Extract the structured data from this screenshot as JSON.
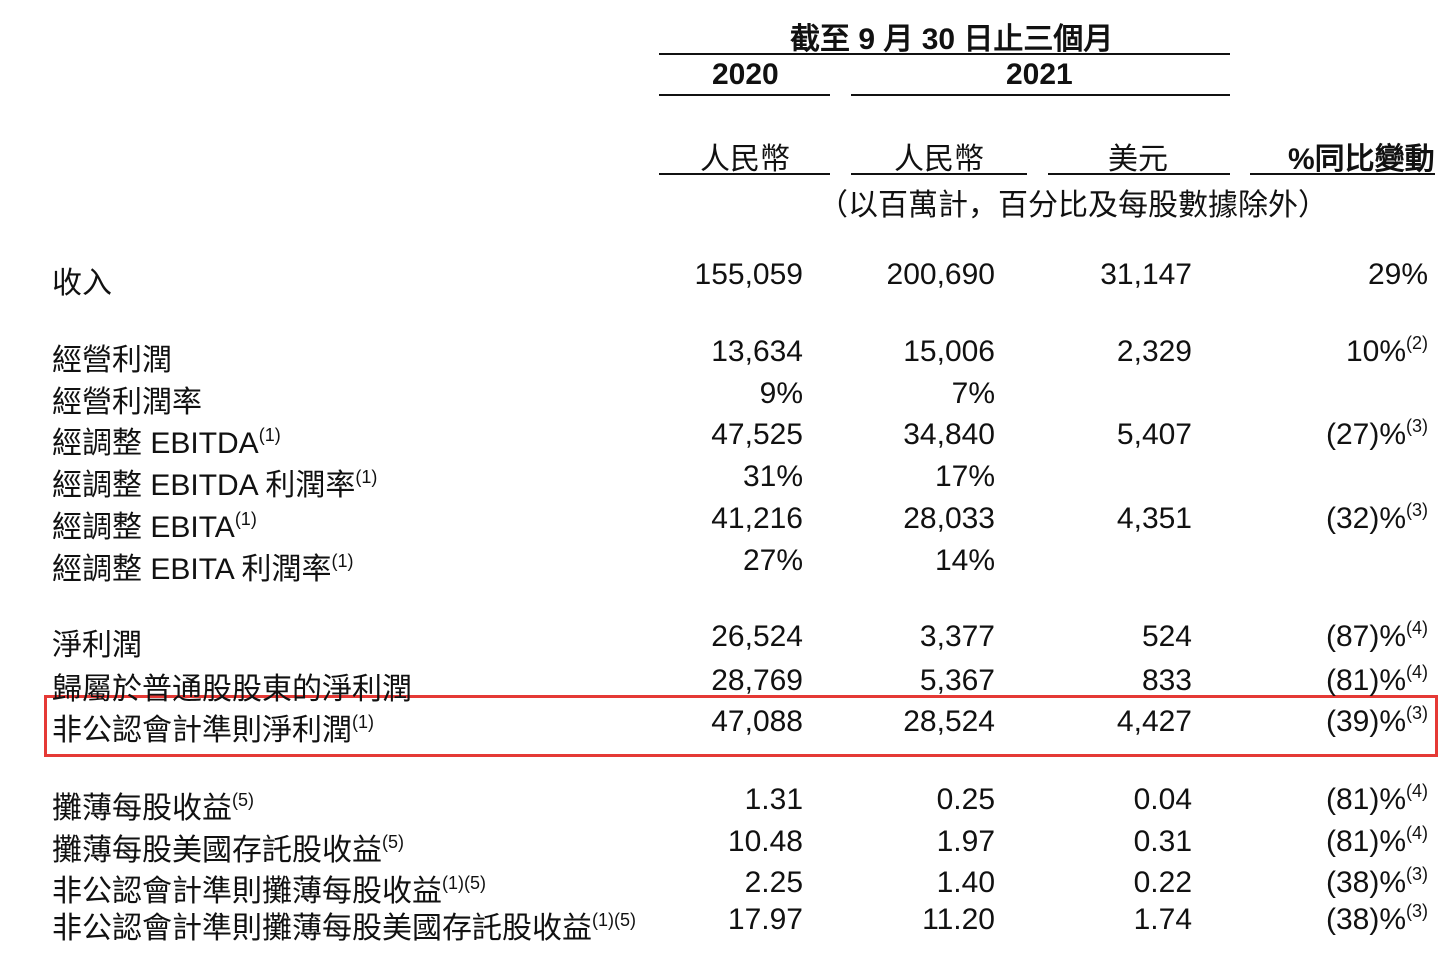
{
  "header": {
    "period": "截至 9 月 30 日止三個月",
    "year_2020": "2020",
    "year_2021": "2021",
    "col_rmb_2020": "人民幣",
    "col_rmb_2021": "人民幣",
    "col_usd_2021": "美元",
    "col_yoy": "%同比變動",
    "units_note": "（以百萬計，百分比及每股數據除外）"
  },
  "rows": [
    {
      "label": "收入",
      "sup": "",
      "v0": "155,059",
      "v1": "200,690",
      "v2": "31,147",
      "v3": "29%",
      "v3sup": ""
    },
    {
      "label": "經營利潤",
      "sup": "",
      "v0": "13,634",
      "v1": "15,006",
      "v2": "2,329",
      "v3": "10%",
      "v3sup": "(2)"
    },
    {
      "label": "經營利潤率",
      "sup": "",
      "v0": "9%",
      "v1": "7%",
      "v2": "",
      "v3": "",
      "v3sup": ""
    },
    {
      "label": "經調整 EBITDA",
      "sup": "(1)",
      "v0": "47,525",
      "v1": "34,840",
      "v2": "5,407",
      "v3": "(27)%",
      "v3sup": "(3)"
    },
    {
      "label": "經調整 EBITDA 利潤率",
      "sup": "(1)",
      "v0": "31%",
      "v1": "17%",
      "v2": "",
      "v3": "",
      "v3sup": ""
    },
    {
      "label": "經調整 EBITA",
      "sup": "(1)",
      "v0": "41,216",
      "v1": "28,033",
      "v2": "4,351",
      "v3": "(32)%",
      "v3sup": "(3)"
    },
    {
      "label": "經調整 EBITA 利潤率",
      "sup": "(1)",
      "v0": "27%",
      "v1": "14%",
      "v2": "",
      "v3": "",
      "v3sup": ""
    },
    {
      "label": "淨利潤",
      "sup": "",
      "v0": "26,524",
      "v1": "3,377",
      "v2": "524",
      "v3": "(87)%",
      "v3sup": "(4)"
    },
    {
      "label": "歸屬於普通股股東的淨利潤",
      "sup": "",
      "v0": "28,769",
      "v1": "5,367",
      "v2": "833",
      "v3": "(81)%",
      "v3sup": "(4)"
    },
    {
      "label": "非公認會計準則淨利潤",
      "sup": "(1)",
      "v0": "47,088",
      "v1": "28,524",
      "v2": "4,427",
      "v3": "(39)%",
      "v3sup": "(3)"
    },
    {
      "label": "攤薄每股收益",
      "sup": "(5)",
      "v0": "1.31",
      "v1": "0.25",
      "v2": "0.04",
      "v3": "(81)%",
      "v3sup": "(4)"
    },
    {
      "label": "攤薄每股美國存託股收益",
      "sup": "(5)",
      "v0": "10.48",
      "v1": "1.97",
      "v2": "0.31",
      "v3": "(81)%",
      "v3sup": "(4)"
    },
    {
      "label": "非公認會計準則攤薄每股收益",
      "sup": "(1)(5)",
      "v0": "2.25",
      "v1": "1.40",
      "v2": "0.22",
      "v3": "(38)%",
      "v3sup": "(3)"
    },
    {
      "label": "非公認會計準則攤薄每股美國存託股收益",
      "sup": "(1)(5)",
      "v0": "17.97",
      "v1": "11.20",
      "v2": "1.74",
      "v3": "(38)%",
      "v3sup": "(3)"
    }
  ],
  "highlight_color": "#e53935"
}
